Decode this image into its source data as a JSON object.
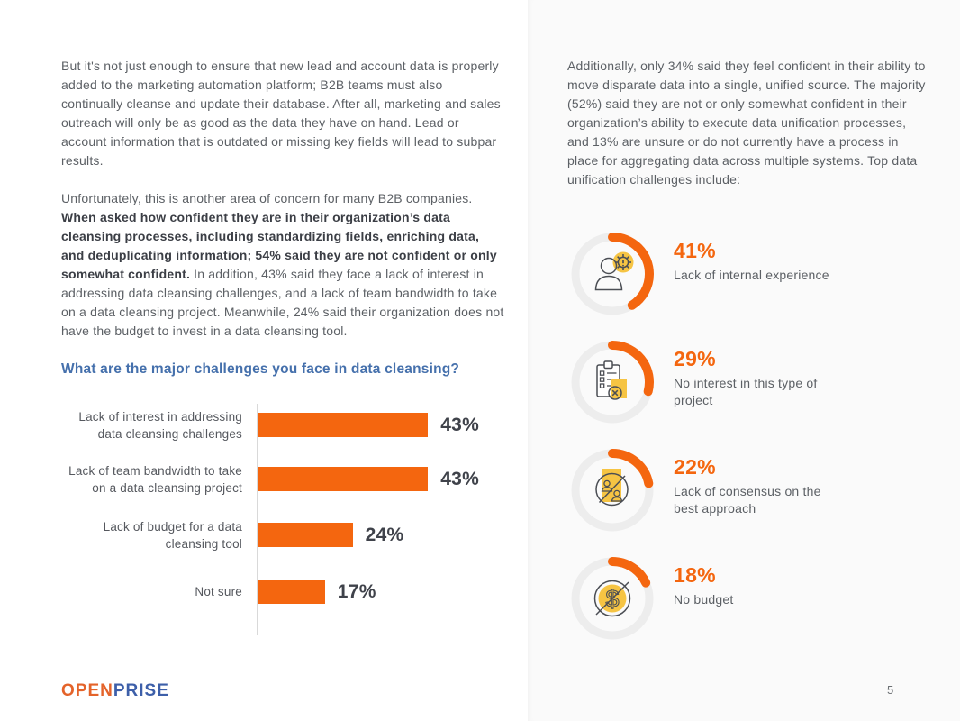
{
  "left_page": {
    "para1": "But it's not just enough to ensure that new lead and account data is properly added to the marketing automation platform; B2B teams must also continually cleanse and update their database. After all, marketing and sales outreach will only be as good as the data they have on hand. Lead or account information that is outdated or missing key fields will lead to subpar results.",
    "para2": {
      "lead": "Unfortunately, this is another area of concern for many B2B companies. ",
      "bold": "When asked how confident they are in their organization’s data cleansing processes, including standardizing fields, enriching data, and deduplicating information; 54% said they are not confident or only somewhat confident.",
      "tail": " In addition, 43% said they face a lack of interest in addressing data cleansing challenges, and a lack of team bandwidth to take on a data cleansing project. Meanwhile, 24% said their organization does not have the budget to invest in a data cleansing tool."
    },
    "chart_title": "What are the major challenges you face in data cleansing?"
  },
  "chart_data": {
    "type": "bar",
    "orientation": "horizontal",
    "title": "What are the major challenges you face in data cleansing?",
    "categories": [
      "Lack of interest in addressing data cleansing challenges",
      "Lack of team bandwidth to take on a data cleansing project",
      "Lack of budget for a data cleansing tool",
      "Not sure"
    ],
    "values": [
      43,
      43,
      24,
      17
    ],
    "value_labels": [
      "43%",
      "43%",
      "24%",
      "17%"
    ],
    "xlim": [
      0,
      50
    ],
    "grid": false,
    "legend": false,
    "bar_color": "#F4660F"
  },
  "right_page": {
    "para": "Additionally, only 34% said they feel confident in their ability to move disparate data into a single, unified source. The majority (52%) said they are not or only somewhat confident in their organization’s ability to execute data unification processes, and 13% are unsure or do not currently have a process in place for aggregating data across multiple systems. Top data unification challenges include:",
    "stats": [
      {
        "percent": 41,
        "value_label": "41%",
        "label": "Lack of internal experience",
        "icon": "person-gear-icon"
      },
      {
        "percent": 29,
        "value_label": "29%",
        "label": "No interest in this type of project",
        "icon": "clipboard-x-icon"
      },
      {
        "percent": 22,
        "value_label": "22%",
        "label": "Lack of consensus on the best approach",
        "icon": "no-consensus-icon"
      },
      {
        "percent": 18,
        "value_label": "18%",
        "label": "No budget",
        "icon": "no-budget-icon"
      }
    ]
  },
  "footer": {
    "logo_open": "OPEN",
    "logo_prise": "PRISE",
    "page_number": "5"
  },
  "colors": {
    "accent_orange": "#F4660F",
    "badge_yellow": "#F6C443",
    "title_blue": "#4570AC",
    "logo_orange": "#E4632A",
    "logo_blue": "#3D5FA9",
    "ring_gray": "#EDEDED",
    "body_gray": "#5C6065"
  }
}
